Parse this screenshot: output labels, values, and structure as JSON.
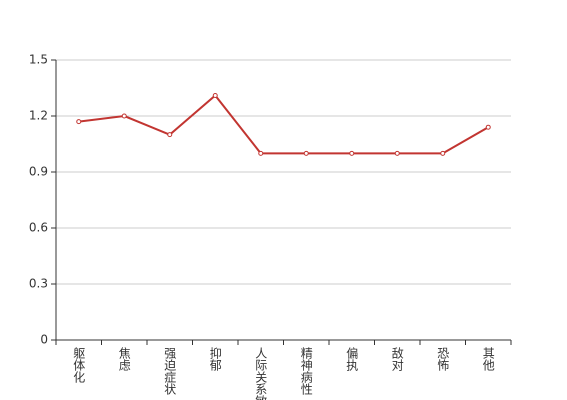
{
  "chart_data": {
    "type": "line",
    "categories": [
      "躯体化",
      "焦虑",
      "强迫症状",
      "抑郁",
      "人际关系敏感",
      "精神病性",
      "偏执",
      "敌对",
      "恐怖",
      "其他"
    ],
    "series": [
      {
        "color": "#c23531",
        "values": [
          1.17,
          1.2,
          1.1,
          1.31,
          1.0,
          1.0,
          1.0,
          1.0,
          1.0,
          1.14
        ]
      }
    ],
    "ylim": [
      0,
      1.5
    ],
    "yticks": [
      0,
      0.3,
      0.6,
      0.9,
      1.2,
      1.5
    ],
    "grid": true
  }
}
